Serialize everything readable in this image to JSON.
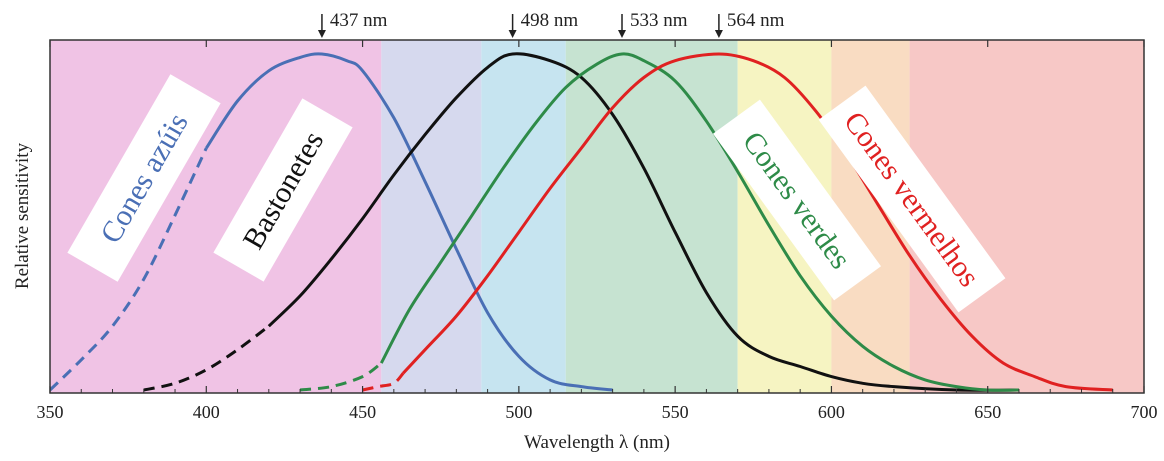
{
  "chart_data": {
    "type": "line",
    "xlabel": "Wavelength  λ  (nm)",
    "ylabel": "Relative sensitivity",
    "xlim": [
      350,
      700
    ],
    "ylim": [
      0,
      1
    ],
    "grid": false,
    "x_ticks": [
      "350",
      "400",
      "450",
      "500",
      "550",
      "600",
      "650",
      "700"
    ],
    "background_bands": [
      {
        "from": 350,
        "to": 456,
        "color": "#f0c3e5"
      },
      {
        "from": 456,
        "to": 488,
        "color": "#d6d9ee"
      },
      {
        "from": 488,
        "to": 515,
        "color": "#c6e4f0"
      },
      {
        "from": 515,
        "to": 570,
        "color": "#c6e3d1"
      },
      {
        "from": 570,
        "to": 600,
        "color": "#f6f4c2"
      },
      {
        "from": 600,
        "to": 625,
        "color": "#f9dcc2"
      },
      {
        "from": 625,
        "to": 700,
        "color": "#f7c8c6"
      }
    ],
    "peaks": [
      {
        "x": 437,
        "label": "437 nm"
      },
      {
        "x": 498,
        "label": "498 nm"
      },
      {
        "x": 533,
        "label": "533 nm"
      },
      {
        "x": 564,
        "label": "564 nm"
      }
    ],
    "series": [
      {
        "name": "Cones azúis",
        "color": "#4a6fb5",
        "peak": 437,
        "dashed_until": 395,
        "x": [
          350,
          360,
          370,
          380,
          390,
          400,
          410,
          420,
          430,
          437,
          445,
          450,
          460,
          470,
          480,
          490,
          500,
          510,
          520,
          530
        ],
        "y": [
          0.0,
          0.09,
          0.19,
          0.33,
          0.52,
          0.72,
          0.86,
          0.95,
          0.99,
          1.0,
          0.98,
          0.95,
          0.81,
          0.62,
          0.42,
          0.23,
          0.1,
          0.03,
          0.01,
          0.0
        ]
      },
      {
        "name": "Bastonetes",
        "color": "#111111",
        "peak": 498,
        "dashed_until": 420,
        "x": [
          380,
          390,
          400,
          410,
          420,
          430,
          440,
          450,
          460,
          470,
          480,
          490,
          498,
          510,
          520,
          530,
          540,
          550,
          560,
          570,
          580,
          590,
          600,
          610,
          620,
          640,
          660
        ],
        "y": [
          0.0,
          0.02,
          0.06,
          0.12,
          0.19,
          0.28,
          0.39,
          0.51,
          0.64,
          0.76,
          0.87,
          0.96,
          1.0,
          0.98,
          0.93,
          0.82,
          0.66,
          0.47,
          0.29,
          0.16,
          0.1,
          0.07,
          0.04,
          0.02,
          0.01,
          0.0,
          0.0
        ]
      },
      {
        "name": "Cones verdes",
        "color": "#2e8b48",
        "peak": 533,
        "dashed_until": 456,
        "x": [
          430,
          440,
          450,
          456,
          465,
          475,
          485,
          495,
          505,
          515,
          525,
          533,
          540,
          550,
          560,
          570,
          580,
          590,
          600,
          610,
          620,
          630,
          640,
          650,
          660
        ],
        "y": [
          0.0,
          0.01,
          0.04,
          0.08,
          0.24,
          0.38,
          0.52,
          0.66,
          0.79,
          0.9,
          0.97,
          1.0,
          0.98,
          0.92,
          0.8,
          0.65,
          0.49,
          0.34,
          0.22,
          0.13,
          0.07,
          0.03,
          0.01,
          0.0,
          0.0
        ]
      },
      {
        "name": "Cones vermelhos",
        "color": "#e02121",
        "peak": 564,
        "dashed_until": 463,
        "x": [
          450,
          455,
          460,
          463,
          470,
          480,
          490,
          500,
          510,
          520,
          530,
          540,
          550,
          564,
          575,
          585,
          595,
          605,
          615,
          625,
          635,
          645,
          655,
          665,
          675,
          690
        ],
        "y": [
          0.0,
          0.01,
          0.02,
          0.05,
          0.12,
          0.22,
          0.34,
          0.47,
          0.6,
          0.72,
          0.84,
          0.93,
          0.98,
          1.0,
          0.98,
          0.93,
          0.83,
          0.7,
          0.55,
          0.4,
          0.27,
          0.16,
          0.08,
          0.04,
          0.01,
          0.0
        ]
      }
    ]
  }
}
